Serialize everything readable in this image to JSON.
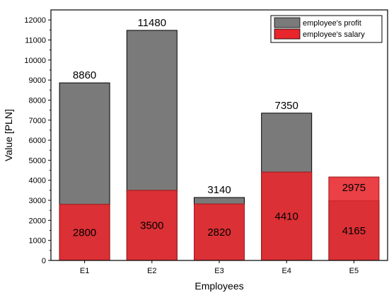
{
  "chart_data": {
    "type": "bar",
    "categories": [
      "E1",
      "E2",
      "E3",
      "E4",
      "E5"
    ],
    "series": [
      {
        "name": "employee's profit",
        "values": [
          8860,
          11480,
          3140,
          7350,
          2975
        ],
        "labels": [
          "8860",
          "11480",
          "3140",
          "7350",
          "2975"
        ],
        "color": "#7a7a7a"
      },
      {
        "name": "employee's salary",
        "values": [
          2800,
          3500,
          2820,
          4410,
          4165
        ],
        "labels": [
          "2800",
          "3500",
          "2820",
          "4410",
          "4165"
        ],
        "color": "#e8262b"
      }
    ],
    "xlabel": "Employees",
    "ylabel": "Value [PLN]",
    "ylim": [
      0,
      12500
    ],
    "yticks": [
      0,
      1000,
      2000,
      3000,
      4000,
      5000,
      6000,
      7000,
      8000,
      9000,
      10000,
      11000,
      12000
    ],
    "yticks_labels": [
      "0",
      "1000",
      "2000",
      "3000",
      "4000",
      "5000",
      "6000",
      "7000",
      "8000",
      "9000",
      "10000",
      "11000",
      "12000"
    ],
    "grid": false,
    "legend_position": "top-right",
    "bar_mode": "overlay"
  }
}
